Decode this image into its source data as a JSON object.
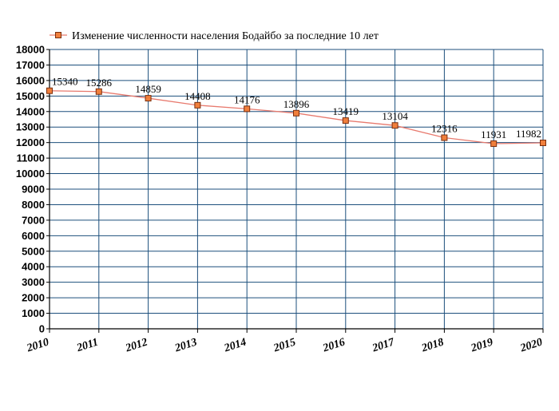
{
  "chart_data": {
    "type": "line",
    "title": "",
    "xlabel": "",
    "ylabel": "",
    "x": [
      "2010",
      "2011",
      "2012",
      "2013",
      "2014",
      "2015",
      "2016",
      "2017",
      "2018",
      "2019",
      "2020"
    ],
    "series": [
      {
        "name": "Изменение численности населения Бодайбо за последние 10 лет",
        "values": [
          15340,
          15286,
          14859,
          14408,
          14176,
          13896,
          13419,
          13104,
          12316,
          11931,
          11982
        ],
        "labels": [
          "15340",
          "15286",
          "14859",
          "14408",
          "14176",
          "13896",
          "13419",
          "13104",
          "12316",
          "11931",
          "11982"
        ]
      }
    ],
    "ylim": [
      0,
      18000
    ],
    "yticks": [
      "0",
      "1000",
      "2000",
      "3000",
      "4000",
      "5000",
      "6000",
      "7000",
      "8000",
      "9000",
      "10000",
      "11000",
      "12000",
      "13000",
      "14000",
      "15000",
      "16000",
      "17000",
      "18000"
    ],
    "grid": true,
    "legend_position": "top",
    "colors": {
      "line": "#e87a6e",
      "marker_fill": "#f07f3c",
      "marker_stroke": "#7a2e0e",
      "grid": "#1c4f7c",
      "axis": "#000000"
    }
  }
}
